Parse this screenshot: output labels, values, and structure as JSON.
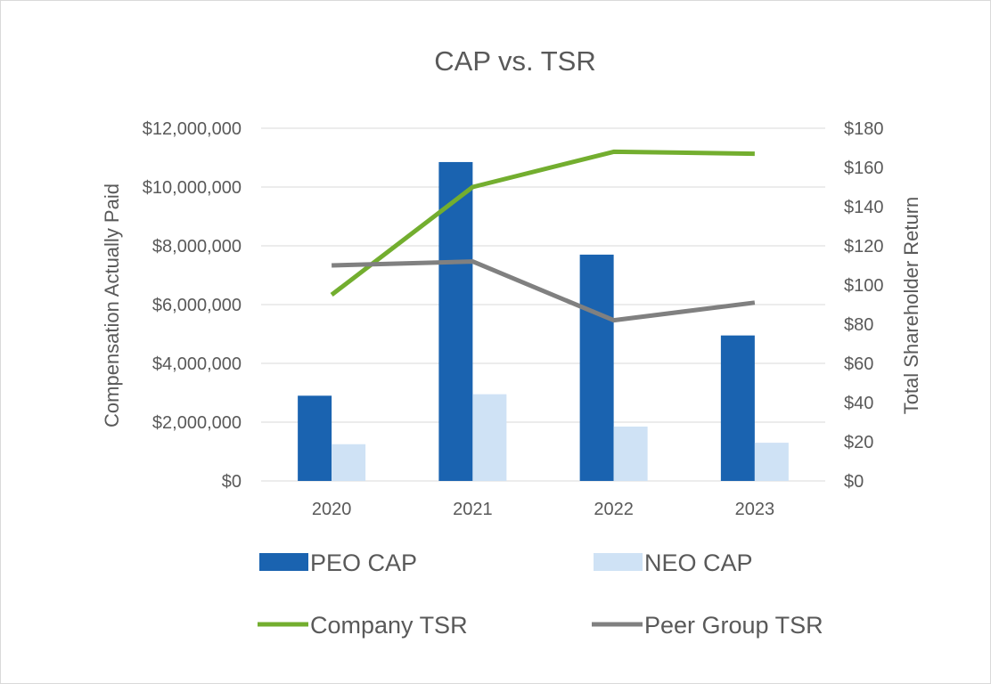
{
  "chart_data": {
    "type": "bar",
    "title": "CAP vs. TSR",
    "categories": [
      "2020",
      "2021",
      "2022",
      "2023"
    ],
    "series": [
      {
        "name": "PEO CAP",
        "kind": "bar",
        "axis": "left",
        "color": "#1a63b0",
        "values": [
          2900000,
          10850000,
          7700000,
          4950000
        ]
      },
      {
        "name": "NEO CAP",
        "kind": "bar",
        "axis": "left",
        "color": "#cfe2f5",
        "values": [
          1250000,
          2950000,
          1850000,
          1300000
        ]
      },
      {
        "name": "Company TSR",
        "kind": "line",
        "axis": "right",
        "color": "#73ae2f",
        "values": [
          95,
          150,
          168,
          167
        ]
      },
      {
        "name": "Peer Group TSR",
        "kind": "line",
        "axis": "right",
        "color": "#808080",
        "values": [
          110,
          112,
          82,
          91
        ]
      }
    ],
    "ylabel": "Compensation Actually Paid",
    "y2label": "Total Shareholder Return",
    "ylim": [
      0,
      12000000
    ],
    "y2lim": [
      0,
      180
    ],
    "yticks": [
      "$0",
      "$2,000,000",
      "$4,000,000",
      "$6,000,000",
      "$8,000,000",
      "$10,000,000",
      "$12,000,000"
    ],
    "y2ticks": [
      "$0",
      "$20",
      "$40",
      "$60",
      "$80",
      "$100",
      "$120",
      "$140",
      "$160",
      "$180"
    ],
    "grid": true,
    "legend_position": "bottom"
  }
}
